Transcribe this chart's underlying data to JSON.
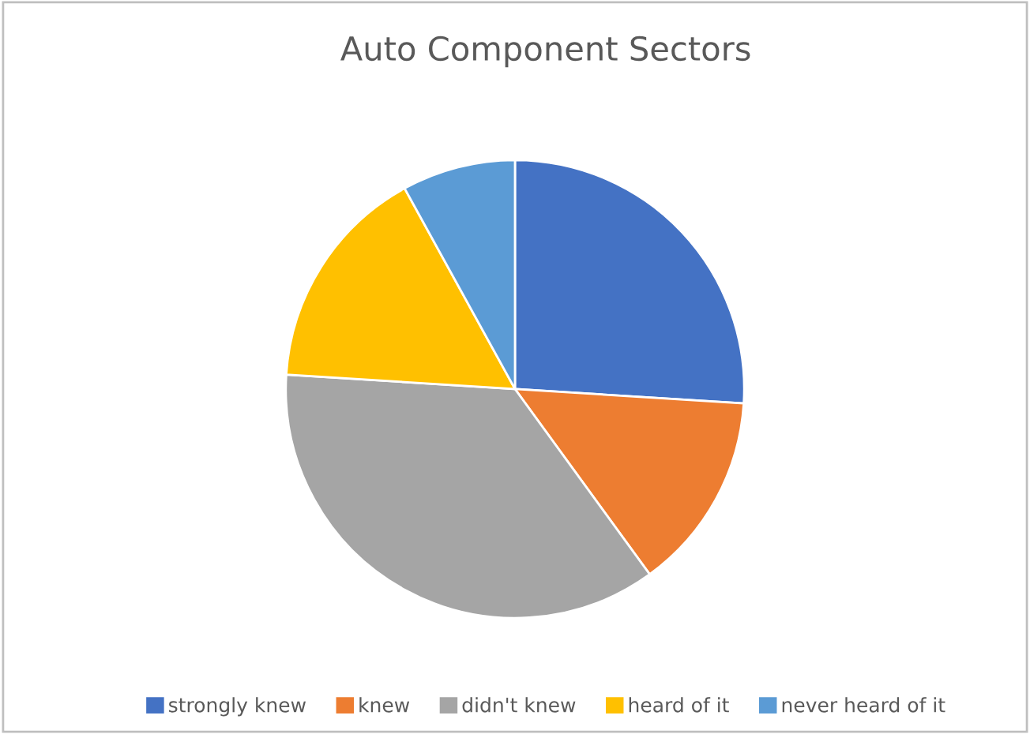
{
  "chart_data": {
    "type": "pie",
    "title": "Auto Component Sectors",
    "categories": [
      "strongly knew",
      "knew",
      "didn't knew",
      "heard of it",
      "never heard of it"
    ],
    "values": [
      26,
      14,
      36,
      16,
      8
    ],
    "colors": [
      "#4472c4",
      "#ed7d31",
      "#a5a5a5",
      "#ffc000",
      "#5b9bd5"
    ],
    "legend": "bottom"
  }
}
